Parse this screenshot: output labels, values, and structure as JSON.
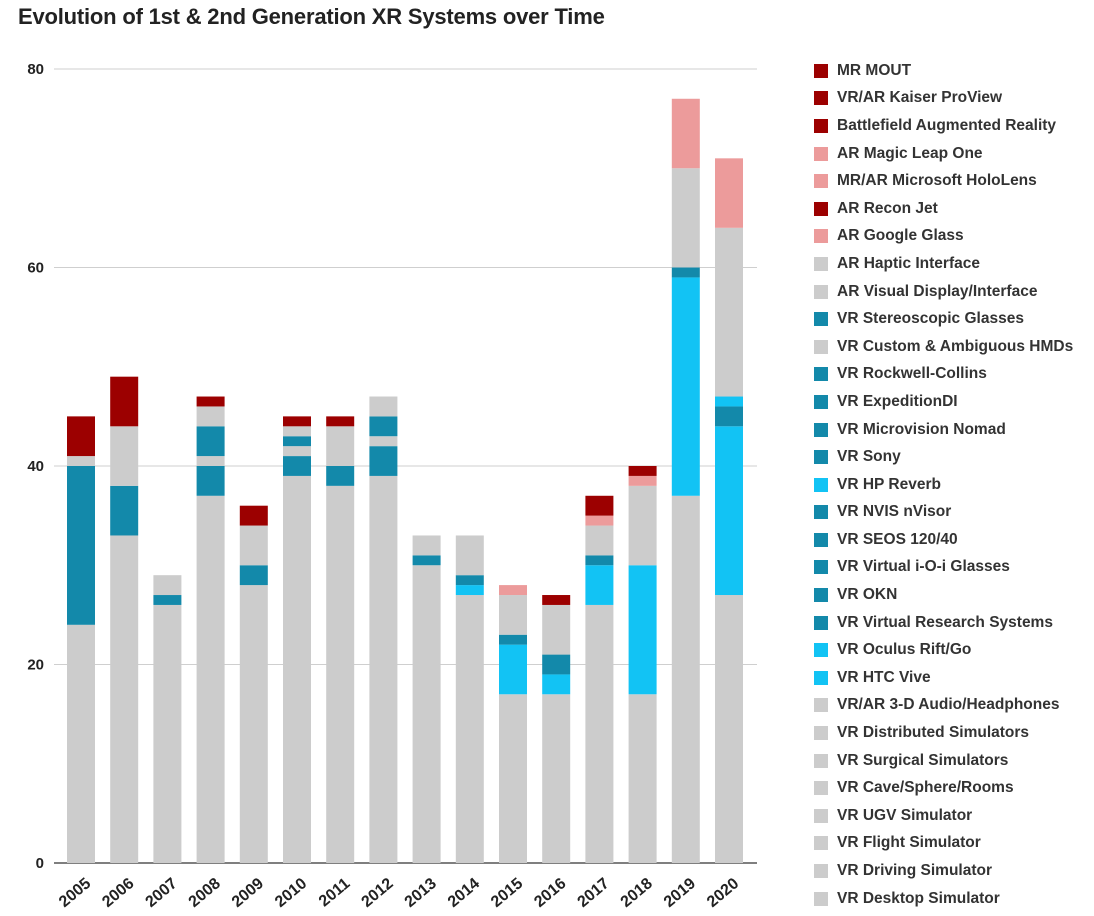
{
  "chart_data": {
    "type": "bar",
    "stacked": true,
    "title": "Evolution of 1st & 2nd Generation XR Systems over Time",
    "xlabel": "",
    "ylabel": "",
    "ylim": [
      0,
      80
    ],
    "yticks": [
      0,
      20,
      40,
      60,
      80
    ],
    "grid": true,
    "legend_position": "right",
    "categories": [
      "2005",
      "2006",
      "2007",
      "2008",
      "2009",
      "2010",
      "2011",
      "2012",
      "2013",
      "2014",
      "2015",
      "2016",
      "2017",
      "2018",
      "2019",
      "2020"
    ],
    "series": [
      {
        "name": "VR Desktop Simulator",
        "color": "#cccccc",
        "values": [
          24,
          33,
          26,
          37,
          28,
          39,
          38,
          39,
          30,
          27,
          17,
          17,
          26,
          17,
          37,
          27
        ]
      },
      {
        "name": "VR Driving Simulator",
        "color": "#cccccc",
        "values": [
          0,
          0,
          0,
          0,
          0,
          0,
          0,
          0,
          0,
          0,
          0,
          0,
          0,
          0,
          0,
          0
        ]
      },
      {
        "name": "VR Flight Simulator",
        "color": "#cccccc",
        "values": [
          0,
          0,
          0,
          0,
          0,
          0,
          0,
          0,
          0,
          0,
          0,
          0,
          0,
          0,
          0,
          0
        ]
      },
      {
        "name": "VR UGV Simulator",
        "color": "#cccccc",
        "values": [
          0,
          0,
          0,
          0,
          0,
          0,
          0,
          0,
          0,
          0,
          0,
          0,
          0,
          0,
          0,
          0
        ]
      },
      {
        "name": "VR Cave/Sphere/Rooms",
        "color": "#cccccc",
        "values": [
          0,
          0,
          0,
          0,
          0,
          0,
          0,
          0,
          0,
          0,
          0,
          0,
          0,
          0,
          0,
          0
        ]
      },
      {
        "name": "VR Surgical Simulators",
        "color": "#cccccc",
        "values": [
          0,
          0,
          0,
          0,
          0,
          0,
          0,
          0,
          0,
          0,
          0,
          0,
          0,
          0,
          0,
          0
        ]
      },
      {
        "name": "VR Distributed Simulators",
        "color": "#cccccc",
        "values": [
          0,
          0,
          0,
          0,
          0,
          0,
          0,
          0,
          0,
          0,
          0,
          0,
          0,
          0,
          0,
          0
        ]
      },
      {
        "name": "VR/AR 3-D Audio/Headphones",
        "color": "#cccccc",
        "values": [
          0,
          0,
          0,
          0,
          0,
          0,
          0,
          0,
          0,
          0,
          0,
          0,
          0,
          0,
          0,
          0
        ]
      },
      {
        "name": "VR HTC Vive",
        "color": "#12c3f4",
        "values": [
          0,
          0,
          0,
          0,
          0,
          0,
          0,
          0,
          0,
          1,
          5,
          2,
          4,
          13,
          22,
          17
        ]
      },
      {
        "name": "VR Oculus Rift/Go",
        "color": "#12c3f4",
        "values": [
          0,
          0,
          0,
          0,
          0,
          0,
          0,
          0,
          0,
          0,
          0,
          0,
          0,
          0,
          0,
          0
        ]
      },
      {
        "name": "VR Virtual Research Systems",
        "color": "#1389aa",
        "values": [
          16,
          5,
          1,
          3,
          2,
          2,
          2,
          3,
          1,
          1,
          1,
          2,
          1,
          0,
          1,
          2
        ]
      },
      {
        "name": "VR OKN",
        "color": "#1389aa",
        "values": [
          0,
          0,
          0,
          0,
          0,
          0,
          0,
          0,
          0,
          0,
          0,
          0,
          0,
          0,
          0,
          0
        ]
      },
      {
        "name": "VR Virtual i-O-i Glasses",
        "color": "#1389aa",
        "values": [
          0,
          0,
          0,
          0,
          0,
          0,
          0,
          0,
          0,
          0,
          0,
          0,
          0,
          0,
          0,
          0
        ]
      },
      {
        "name": "VR SEOS 120/40",
        "color": "#1389aa",
        "values": [
          0,
          0,
          0,
          0,
          0,
          0,
          0,
          0,
          0,
          0,
          0,
          0,
          0,
          0,
          0,
          0
        ]
      },
      {
        "name": "VR NVIS nVisor",
        "color": "#1389aa",
        "values": [
          0,
          0,
          0,
          0,
          0,
          0,
          0,
          0,
          0,
          0,
          0,
          0,
          0,
          0,
          0,
          0
        ]
      },
      {
        "name": "VR HP Reverb",
        "color": "#12c3f4",
        "values": [
          0,
          0,
          0,
          0,
          0,
          0,
          0,
          0,
          0,
          0,
          0,
          0,
          0,
          0,
          0,
          1
        ]
      },
      {
        "name": "VR Sony",
        "color": "#1389aa",
        "values": [
          0,
          0,
          0,
          0,
          0,
          0,
          0,
          0,
          0,
          0,
          0,
          0,
          0,
          0,
          0,
          0
        ]
      },
      {
        "name": "VR Microvision Nomad",
        "color": "#1389aa",
        "values": [
          0,
          0,
          0,
          0,
          0,
          0,
          0,
          0,
          0,
          0,
          0,
          0,
          0,
          0,
          0,
          0
        ]
      },
      {
        "name": "VR ExpeditionDI",
        "color": "#1389aa",
        "values": [
          0,
          0,
          0,
          0,
          0,
          0,
          0,
          0,
          0,
          0,
          0,
          0,
          0,
          0,
          0,
          0
        ]
      },
      {
        "name": "VR Rockwell-Collins",
        "color": "#1389aa",
        "values": [
          0,
          0,
          0,
          0,
          0,
          0,
          0,
          0,
          0,
          0,
          0,
          0,
          0,
          0,
          0,
          0
        ]
      },
      {
        "name": "VR Custom & Ambiguous HMDs",
        "color": "#cccccc",
        "values": [
          1,
          6,
          2,
          1,
          0,
          1,
          0,
          1,
          0,
          0,
          0,
          0,
          0,
          0,
          0,
          0
        ]
      },
      {
        "name": "VR Stereoscopic Glasses",
        "color": "#1389aa",
        "values": [
          0,
          0,
          0,
          3,
          0,
          1,
          0,
          2,
          0,
          0,
          0,
          0,
          0,
          0,
          0,
          0
        ]
      },
      {
        "name": "AR Visual Display/Interface",
        "color": "#cccccc",
        "values": [
          0,
          0,
          0,
          2,
          4,
          1,
          4,
          2,
          2,
          4,
          4,
          5,
          3,
          8,
          10,
          17
        ]
      },
      {
        "name": "AR Haptic Interface",
        "color": "#cccccc",
        "values": [
          0,
          0,
          0,
          0,
          0,
          0,
          0,
          0,
          0,
          0,
          0,
          0,
          0,
          0,
          0,
          0
        ]
      },
      {
        "name": "AR Google Glass",
        "color": "#ec9b9b",
        "values": [
          0,
          0,
          0,
          0,
          0,
          0,
          0,
          0,
          0,
          0,
          1,
          0,
          1,
          1,
          7,
          7
        ]
      },
      {
        "name": "AR Recon Jet",
        "color": "#9c0000",
        "values": [
          4,
          5,
          0,
          1,
          2,
          1,
          1,
          0,
          0,
          0,
          0,
          1,
          2,
          1,
          0,
          0
        ]
      },
      {
        "name": "MR/AR Microsoft HoloLens",
        "color": "#ec9b9b",
        "values": [
          0,
          0,
          0,
          0,
          0,
          0,
          0,
          0,
          0,
          0,
          0,
          0,
          0,
          0,
          0,
          0
        ]
      },
      {
        "name": "AR Magic Leap One",
        "color": "#ec9b9b",
        "values": [
          0,
          0,
          0,
          0,
          0,
          0,
          0,
          0,
          0,
          0,
          0,
          0,
          0,
          0,
          0,
          0
        ]
      },
      {
        "name": "Battlefield Augmented Reality",
        "color": "#9c0000",
        "values": [
          0,
          0,
          0,
          0,
          0,
          0,
          0,
          0,
          0,
          0,
          0,
          0,
          0,
          0,
          0,
          0
        ]
      },
      {
        "name": "VR/AR Kaiser ProView",
        "color": "#9c0000",
        "values": [
          0,
          0,
          0,
          0,
          0,
          0,
          0,
          0,
          0,
          0,
          0,
          0,
          0,
          0,
          0,
          0
        ]
      },
      {
        "name": "MR MOUT",
        "color": "#9c0000",
        "values": [
          0,
          0,
          0,
          0,
          0,
          0,
          0,
          0,
          0,
          0,
          0,
          0,
          0,
          0,
          0,
          0
        ]
      }
    ]
  }
}
